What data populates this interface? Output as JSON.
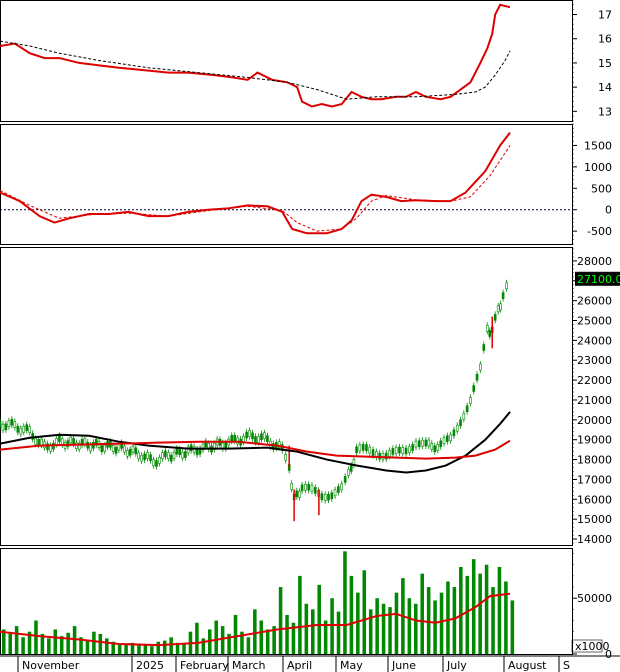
{
  "chart_data": [
    {
      "type": "line",
      "panel": "relative-strength",
      "ylim": [
        12.6,
        17.6
      ],
      "yticks": [
        13,
        14,
        15,
        16,
        17
      ],
      "series": [
        {
          "role": "price-line",
          "color": "#dd0000",
          "points": [
            [
              0,
              15.7
            ],
            [
              15,
              15.8
            ],
            [
              30,
              15.4
            ],
            [
              45,
              15.2
            ],
            [
              60,
              15.2
            ],
            [
              80,
              15.0
            ],
            [
              100,
              14.9
            ],
            [
              120,
              14.8
            ],
            [
              145,
              14.7
            ],
            [
              170,
              14.6
            ],
            [
              190,
              14.6
            ],
            [
              215,
              14.5
            ],
            [
              235,
              14.4
            ],
            [
              250,
              14.3
            ],
            [
              260,
              14.6
            ],
            [
              275,
              14.3
            ],
            [
              290,
              14.2
            ],
            [
              300,
              14.0
            ],
            [
              305,
              13.4
            ],
            [
              315,
              13.2
            ],
            [
              325,
              13.3
            ],
            [
              335,
              13.2
            ],
            [
              345,
              13.3
            ],
            [
              355,
              13.8
            ],
            [
              365,
              13.6
            ],
            [
              375,
              13.5
            ],
            [
              385,
              13.5
            ],
            [
              400,
              13.6
            ],
            [
              410,
              13.6
            ],
            [
              420,
              13.8
            ],
            [
              430,
              13.6
            ],
            [
              445,
              13.5
            ],
            [
              455,
              13.6
            ],
            [
              465,
              13.9
            ],
            [
              475,
              14.2
            ],
            [
              485,
              15.0
            ],
            [
              492,
              15.6
            ],
            [
              497,
              16.2
            ],
            [
              500,
              17.0
            ],
            [
              505,
              17.4
            ],
            [
              515,
              17.3
            ]
          ]
        },
        {
          "role": "moving-average",
          "color": "#000000",
          "dashed": true,
          "points": [
            [
              0,
              15.9
            ],
            [
              30,
              15.7
            ],
            [
              60,
              15.4
            ],
            [
              100,
              15.1
            ],
            [
              150,
              14.8
            ],
            [
              200,
              14.6
            ],
            [
              250,
              14.4
            ],
            [
              290,
              14.2
            ],
            [
              320,
              13.9
            ],
            [
              350,
              13.5
            ],
            [
              380,
              13.6
            ],
            [
              420,
              13.6
            ],
            [
              460,
              13.7
            ],
            [
              480,
              13.8
            ],
            [
              490,
              14.0
            ],
            [
              500,
              14.5
            ],
            [
              510,
              15.1
            ],
            [
              515,
              15.5
            ]
          ]
        }
      ]
    },
    {
      "type": "line",
      "panel": "macd",
      "ylim": [
        -800,
        2000
      ],
      "yticks": [
        -500,
        0,
        500,
        1000,
        1500
      ],
      "series": [
        {
          "role": "macd",
          "color": "#dd0000",
          "points": [
            [
              0,
              400
            ],
            [
              20,
              200
            ],
            [
              40,
              -150
            ],
            [
              55,
              -300
            ],
            [
              70,
              -200
            ],
            [
              90,
              -100
            ],
            [
              110,
              -100
            ],
            [
              130,
              -50
            ],
            [
              150,
              -150
            ],
            [
              170,
              -150
            ],
            [
              190,
              -50
            ],
            [
              210,
              0
            ],
            [
              230,
              30
            ],
            [
              250,
              100
            ],
            [
              270,
              80
            ],
            [
              285,
              -50
            ],
            [
              295,
              -450
            ],
            [
              310,
              -550
            ],
            [
              330,
              -550
            ],
            [
              345,
              -450
            ],
            [
              355,
              -250
            ],
            [
              365,
              200
            ],
            [
              375,
              350
            ],
            [
              390,
              300
            ],
            [
              405,
              200
            ],
            [
              420,
              220
            ],
            [
              440,
              200
            ],
            [
              455,
              200
            ],
            [
              470,
              400
            ],
            [
              490,
              900
            ],
            [
              505,
              1500
            ],
            [
              515,
              1800
            ]
          ]
        },
        {
          "role": "signal",
          "color": "#dd0000",
          "dashed": true,
          "points": [
            [
              0,
              450
            ],
            [
              30,
              100
            ],
            [
              60,
              -200
            ],
            [
              90,
              -120
            ],
            [
              130,
              -80
            ],
            [
              170,
              -150
            ],
            [
              210,
              -20
            ],
            [
              250,
              80
            ],
            [
              285,
              -20
            ],
            [
              300,
              -300
            ],
            [
              320,
              -500
            ],
            [
              345,
              -450
            ],
            [
              360,
              -200
            ],
            [
              375,
              200
            ],
            [
              390,
              330
            ],
            [
              420,
              230
            ],
            [
              455,
              200
            ],
            [
              475,
              300
            ],
            [
              495,
              800
            ],
            [
              515,
              1500
            ]
          ]
        }
      ],
      "reference_line": 0
    },
    {
      "type": "candlestick",
      "panel": "price",
      "ylim": [
        13700,
        28700
      ],
      "yticks": [
        14000,
        15000,
        16000,
        17000,
        18000,
        19000,
        20000,
        21000,
        22000,
        23000,
        24000,
        25000,
        26000,
        27000,
        28000
      ],
      "last_price_label": "27100.00",
      "series": [
        {
          "role": "close",
          "color": "#008800",
          "points": [
            [
              0,
              19800
            ],
            [
              15,
              19700
            ],
            [
              30,
              19400
            ],
            [
              45,
              18600
            ],
            [
              60,
              18900
            ],
            [
              80,
              18800
            ],
            [
              100,
              18700
            ],
            [
              120,
              18600
            ],
            [
              140,
              18300
            ],
            [
              155,
              17900
            ],
            [
              170,
              18200
            ],
            [
              190,
              18400
            ],
            [
              205,
              18600
            ],
            [
              225,
              18800
            ],
            [
              240,
              19000
            ],
            [
              255,
              19200
            ],
            [
              270,
              19000
            ],
            [
              285,
              18500
            ],
            [
              292,
              17600
            ],
            [
              297,
              16000
            ],
            [
              305,
              16600
            ],
            [
              315,
              16400
            ],
            [
              325,
              16200
            ],
            [
              335,
              16300
            ],
            [
              345,
              16500
            ],
            [
              352,
              17200
            ],
            [
              360,
              18400
            ],
            [
              370,
              18500
            ],
            [
              380,
              18400
            ],
            [
              390,
              18200
            ],
            [
              400,
              18300
            ],
            [
              410,
              18500
            ],
            [
              420,
              18900
            ],
            [
              430,
              18700
            ],
            [
              445,
              18700
            ],
            [
              455,
              19000
            ],
            [
              465,
              20000
            ],
            [
              475,
              21000
            ],
            [
              485,
              22500
            ],
            [
              492,
              24500
            ],
            [
              497,
              24500
            ],
            [
              503,
              25500
            ],
            [
              508,
              26200
            ],
            [
              515,
              27100
            ]
          ]
        },
        {
          "role": "moving-average-long",
          "color": "#000000",
          "points": [
            [
              0,
              18800
            ],
            [
              30,
              19100
            ],
            [
              60,
              19250
            ],
            [
              90,
              19200
            ],
            [
              120,
              18900
            ],
            [
              150,
              18700
            ],
            [
              190,
              18550
            ],
            [
              230,
              18550
            ],
            [
              270,
              18600
            ],
            [
              300,
              18400
            ],
            [
              330,
              18000
            ],
            [
              360,
              17700
            ],
            [
              390,
              17450
            ],
            [
              410,
              17350
            ],
            [
              430,
              17450
            ],
            [
              450,
              17700
            ],
            [
              470,
              18200
            ],
            [
              490,
              19000
            ],
            [
              505,
              19800
            ],
            [
              515,
              20400
            ]
          ]
        },
        {
          "role": "moving-average-mid",
          "color": "#dd0000",
          "points": [
            [
              0,
              18500
            ],
            [
              40,
              18700
            ],
            [
              80,
              18750
            ],
            [
              120,
              18800
            ],
            [
              160,
              18850
            ],
            [
              200,
              18900
            ],
            [
              240,
              18900
            ],
            [
              280,
              18700
            ],
            [
              310,
              18400
            ],
            [
              340,
              18200
            ],
            [
              370,
              18150
            ],
            [
              400,
              18100
            ],
            [
              430,
              18050
            ],
            [
              460,
              18100
            ],
            [
              480,
              18200
            ],
            [
              500,
              18500
            ],
            [
              515,
              18950
            ]
          ]
        }
      ]
    },
    {
      "type": "bar",
      "panel": "volume",
      "ylim": [
        0,
        95000
      ],
      "yticks": [
        0,
        50000
      ],
      "unit_label": "x1000",
      "x_labels": [
        "November",
        "2025",
        "February",
        "March",
        "April",
        "May",
        "June",
        "July",
        "August",
        "S"
      ],
      "volume_average": [
        [
          0,
          20000
        ],
        [
          40,
          16000
        ],
        [
          80,
          13000
        ],
        [
          120,
          9000
        ],
        [
          160,
          8000
        ],
        [
          200,
          10000
        ],
        [
          240,
          16000
        ],
        [
          280,
          22000
        ],
        [
          320,
          26000
        ],
        [
          350,
          26000
        ],
        [
          380,
          34000
        ],
        [
          400,
          36000
        ],
        [
          420,
          30000
        ],
        [
          440,
          28000
        ],
        [
          460,
          32000
        ],
        [
          480,
          42000
        ],
        [
          495,
          52000
        ],
        [
          515,
          54000
        ]
      ],
      "volume_bars": [
        22000,
        18000,
        25000,
        15000,
        20000,
        30000,
        18000,
        14000,
        22000,
        16000,
        19000,
        25000,
        15000,
        12000,
        20000,
        18000,
        14000,
        11000,
        8000,
        9000,
        10000,
        8000,
        9000,
        7000,
        11000,
        12000,
        15000,
        10000,
        9000,
        20000,
        28000,
        14000,
        22000,
        30000,
        25000,
        18000,
        35000,
        20000,
        15000,
        40000,
        30000,
        22000,
        25000,
        60000,
        35000,
        28000,
        70000,
        45000,
        40000,
        62000,
        30000,
        50000,
        38000,
        92000,
        70000,
        55000,
        75000,
        40000,
        50000,
        45000,
        42000,
        55000,
        68000,
        50000,
        45000,
        72000,
        60000,
        48000,
        55000,
        65000,
        60000,
        78000,
        70000,
        85000,
        72000,
        80000,
        60000,
        78000,
        65000,
        48000
      ]
    }
  ]
}
